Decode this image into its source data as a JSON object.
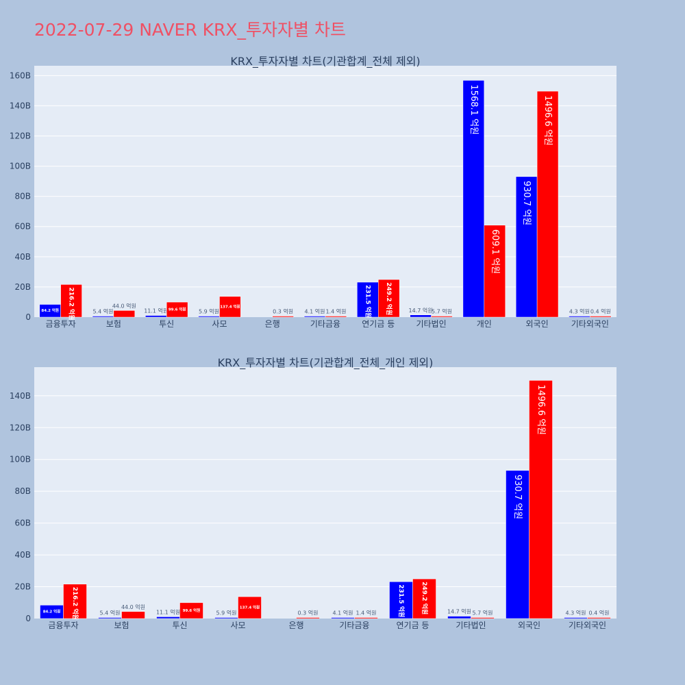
{
  "page": {
    "title": "2022-07-29 NAVER KRX_투자자별 차트"
  },
  "colors": {
    "background": "#b0c4de",
    "plot_bg": "#e5ecf6",
    "title": "#ef5064",
    "series_a": "#0000ff",
    "series_b": "#ff0000",
    "text": "#2a3f5f"
  },
  "chart_data": [
    {
      "type": "bar",
      "title": "KRX_투자자별 차트(기관합계_전체 제외)",
      "categories": [
        "금융투자",
        "보험",
        "투신",
        "사모",
        "은행",
        "기타금융",
        "연기금 등",
        "기타법인",
        "개인",
        "외국인",
        "기타외국인"
      ],
      "series": [
        {
          "color": "#0000ff",
          "values": [
            8420000000.0,
            540000000.0,
            1110000000.0,
            590000000.0,
            0,
            410000000.0,
            23150000000.0,
            1470000000.0,
            156810000000.0,
            93070000000.0,
            430000000.0
          ],
          "labels": [
            "84.2 억원",
            "5.4 억원",
            "11.1 억원",
            "5.9 억원",
            "",
            "4.1 억원",
            "231.5 억원",
            "14.7 억원",
            "1568.1 억원",
            "930.7 억원",
            "4.3 억원"
          ]
        },
        {
          "color": "#ff0000",
          "values": [
            21620000000.0,
            4400000000.0,
            9960000000.0,
            13740000000.0,
            30000000.0,
            140000000.0,
            24920000000.0,
            570000000.0,
            60910000000.0,
            149660000000.0,
            40000000.0
          ],
          "labels": [
            "216.2 억원",
            "44.0 억원",
            "99.6 억원",
            "137.4 억원",
            "0.3 억원",
            "1.4 억원",
            "249.2 억원",
            "5.7 억원",
            "609.1 억원",
            "1496.6 억원",
            "0.4 억원"
          ]
        }
      ],
      "y_ticks": [
        0,
        20000000000.0,
        40000000000.0,
        60000000000.0,
        80000000000.0,
        100000000000.0,
        120000000000.0,
        140000000000.0,
        160000000000.0
      ],
      "y_tick_labels": [
        "0",
        "20B",
        "40B",
        "60B",
        "80B",
        "100B",
        "120B",
        "140B",
        "160B"
      ],
      "ylim": [
        0,
        166500000000.0
      ],
      "grid": true
    },
    {
      "type": "bar",
      "title": "KRX_투자자별 차트(기관합계_전체_개인 제외)",
      "categories": [
        "금융투자",
        "보험",
        "투신",
        "사모",
        "은행",
        "기타금융",
        "연기금 등",
        "기타법인",
        "외국인",
        "기타외국인"
      ],
      "series": [
        {
          "color": "#0000ff",
          "values": [
            8420000000.0,
            540000000.0,
            1110000000.0,
            590000000.0,
            0,
            410000000.0,
            23150000000.0,
            1470000000.0,
            93070000000.0,
            430000000.0
          ],
          "labels": [
            "84.2 억원",
            "5.4 억원",
            "11.1 억원",
            "5.9 억원",
            "",
            "4.1 억원",
            "231.5 억원",
            "14.7 억원",
            "930.7 억원",
            "4.3 억원"
          ]
        },
        {
          "color": "#ff0000",
          "values": [
            21620000000.0,
            4400000000.0,
            9960000000.0,
            13740000000.0,
            30000000.0,
            140000000.0,
            24920000000.0,
            570000000.0,
            149660000000.0,
            40000000.0
          ],
          "labels": [
            "216.2 억원",
            "44.0 억원",
            "99.6 억원",
            "137.4 억원",
            "0.3 억원",
            "1.4 억원",
            "249.2 억원",
            "5.7 억원",
            "1496.6 억원",
            "0.4 억원"
          ]
        }
      ],
      "y_ticks": [
        0,
        20000000000.0,
        40000000000.0,
        60000000000.0,
        80000000000.0,
        100000000000.0,
        120000000000.0,
        140000000000.0
      ],
      "y_tick_labels": [
        "0",
        "20B",
        "40B",
        "60B",
        "80B",
        "100B",
        "120B",
        "140B"
      ],
      "ylim": [
        0,
        158000000000.0
      ],
      "grid": true
    }
  ]
}
